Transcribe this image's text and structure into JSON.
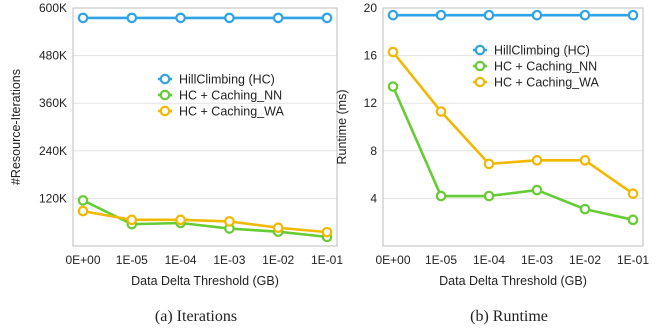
{
  "chart_data": [
    {
      "type": "line",
      "caption": "(a) Iterations",
      "xlabel": "Data Delta Threshold (GB)",
      "ylabel": "#Resource-Iterations",
      "categories": [
        "0E+00",
        "1E-05",
        "1E-04",
        "1E-03",
        "1E-02",
        "1E-01"
      ],
      "yticks": [
        120000,
        240000,
        360000,
        480000,
        600000
      ],
      "ytick_labels": [
        "120K",
        "240K",
        "360K",
        "480K",
        "600K"
      ],
      "ylim": [
        0,
        600000
      ],
      "grid": "horizontal",
      "legend_position": "center-right",
      "series": [
        {
          "name": "HillClimbing (HC)",
          "color": "#2ea3e6",
          "values": [
            575000,
            575000,
            575000,
            575000,
            575000,
            575000
          ]
        },
        {
          "name": "HC + Caching_NN",
          "color": "#66cc33",
          "values": [
            115000,
            55000,
            58000,
            44000,
            36000,
            23000
          ]
        },
        {
          "name": "HC + Caching_WA",
          "color": "#f2b800",
          "values": [
            88000,
            66000,
            66000,
            62000,
            46000,
            35000
          ]
        }
      ]
    },
    {
      "type": "line",
      "caption": "(b) Runtime",
      "xlabel": "Data Delta Threshold (GB)",
      "ylabel": "Runtime (ms)",
      "categories": [
        "0E+00",
        "1E-05",
        "1E-04",
        "1E-03",
        "1E-02",
        "1E-01"
      ],
      "yticks": [
        4,
        8,
        12,
        16,
        20
      ],
      "ytick_labels": [
        "4",
        "8",
        "12",
        "16",
        "20"
      ],
      "ylim": [
        0,
        20
      ],
      "grid": "horizontal",
      "legend_position": "top-right",
      "series": [
        {
          "name": "HillClimbing (HC)",
          "color": "#2ea3e6",
          "values": [
            19.4,
            19.4,
            19.4,
            19.4,
            19.4,
            19.4
          ]
        },
        {
          "name": "HC + Caching_NN",
          "color": "#66cc33",
          "values": [
            13.4,
            4.2,
            4.2,
            4.7,
            3.1,
            2.2
          ]
        },
        {
          "name": "HC + Caching_WA",
          "color": "#f2b800",
          "values": [
            16.3,
            11.3,
            6.9,
            7.2,
            7.2,
            4.4
          ]
        }
      ]
    }
  ]
}
